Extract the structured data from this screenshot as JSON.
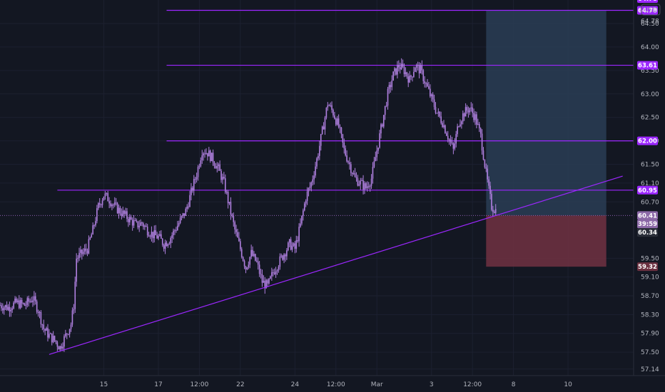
{
  "chart_data": {
    "type": "candlestick",
    "currency_label": "USD",
    "colors": {
      "background": "#131722",
      "candle": "#b080e0",
      "line": "#9c27ff",
      "profit_zone": "#2a3d55",
      "loss_zone": "#6b3040",
      "badge": "#9c27ff"
    },
    "y_axis": {
      "ylim": [
        57.0,
        65.0
      ],
      "ticks": [
        "57.14",
        "57.50",
        "57.90",
        "58.30",
        "58.70",
        "59.10",
        "59.50",
        "60.70",
        "61.10",
        "61.50",
        "62.00",
        "62.50",
        "63.00",
        "63.50",
        "64.00",
        "64.50"
      ]
    },
    "x_axis": {
      "ticks": [
        {
          "label": "15",
          "x": 3
        },
        {
          "label": "17",
          "x": 5
        },
        {
          "label": "12:00",
          "x": 6.5
        },
        {
          "label": "22",
          "x": 8
        },
        {
          "label": "24",
          "x": 10
        },
        {
          "label": "12:00",
          "x": 11.5
        },
        {
          "label": "Mar",
          "x": 13
        },
        {
          "label": "3",
          "x": 15
        },
        {
          "label": "12:00",
          "x": 16.5
        },
        {
          "label": "8",
          "x": 18
        },
        {
          "label": "10",
          "x": 20
        }
      ],
      "xlim": [
        -0.8,
        22.4
      ]
    },
    "price_path": [
      [
        -0.8,
        58.5
      ],
      [
        -0.5,
        58.45
      ],
      [
        -0.2,
        58.55
      ],
      [
        0.1,
        58.5
      ],
      [
        0.4,
        58.65
      ],
      [
        0.6,
        58.4
      ],
      [
        0.8,
        58.0
      ],
      [
        1.0,
        57.85
      ],
      [
        1.2,
        57.75
      ],
      [
        1.4,
        57.6
      ],
      [
        1.6,
        57.85
      ],
      [
        1.8,
        58.1
      ],
      [
        1.9,
        58.5
      ],
      [
        2.0,
        59.5
      ],
      [
        2.2,
        59.6
      ],
      [
        2.4,
        59.7
      ],
      [
        2.6,
        60.1
      ],
      [
        2.8,
        60.6
      ],
      [
        3.0,
        60.85
      ],
      [
        3.2,
        60.75
      ],
      [
        3.4,
        60.6
      ],
      [
        3.6,
        60.5
      ],
      [
        3.8,
        60.4
      ],
      [
        4.0,
        60.3
      ],
      [
        4.2,
        60.2
      ],
      [
        4.4,
        60.25
      ],
      [
        4.6,
        60.1
      ],
      [
        4.8,
        60.0
      ],
      [
        5.0,
        59.95
      ],
      [
        5.2,
        59.8
      ],
      [
        5.4,
        59.9
      ],
      [
        5.6,
        60.1
      ],
      [
        5.8,
        60.3
      ],
      [
        6.0,
        60.5
      ],
      [
        6.2,
        60.9
      ],
      [
        6.4,
        61.3
      ],
      [
        6.6,
        61.8
      ],
      [
        6.8,
        61.75
      ],
      [
        7.0,
        61.6
      ],
      [
        7.2,
        61.4
      ],
      [
        7.4,
        61.1
      ],
      [
        7.6,
        60.6
      ],
      [
        7.8,
        60.1
      ],
      [
        8.0,
        59.7
      ],
      [
        8.2,
        59.3
      ],
      [
        8.4,
        59.6
      ],
      [
        8.6,
        59.4
      ],
      [
        8.8,
        59.0
      ],
      [
        9.0,
        58.9
      ],
      [
        9.2,
        59.2
      ],
      [
        9.4,
        59.4
      ],
      [
        9.6,
        59.6
      ],
      [
        9.8,
        59.8
      ],
      [
        10.0,
        59.7
      ],
      [
        10.2,
        60.2
      ],
      [
        10.4,
        60.8
      ],
      [
        10.6,
        61.1
      ],
      [
        10.8,
        61.6
      ],
      [
        11.0,
        62.2
      ],
      [
        11.2,
        62.8
      ],
      [
        11.4,
        62.6
      ],
      [
        11.6,
        62.3
      ],
      [
        11.8,
        61.8
      ],
      [
        12.0,
        61.5
      ],
      [
        12.2,
        61.2
      ],
      [
        12.4,
        61.1
      ],
      [
        12.6,
        61.0
      ],
      [
        12.8,
        61.2
      ],
      [
        13.0,
        61.8
      ],
      [
        13.2,
        62.4
      ],
      [
        13.4,
        63.0
      ],
      [
        13.6,
        63.4
      ],
      [
        13.8,
        63.6
      ],
      [
        14.0,
        63.5
      ],
      [
        14.2,
        63.3
      ],
      [
        14.4,
        63.6
      ],
      [
        14.6,
        63.5
      ],
      [
        14.8,
        63.2
      ],
      [
        15.0,
        62.9
      ],
      [
        15.2,
        62.6
      ],
      [
        15.4,
        62.4
      ],
      [
        15.6,
        62.1
      ],
      [
        15.8,
        61.8
      ],
      [
        16.0,
        62.4
      ],
      [
        16.2,
        62.6
      ],
      [
        16.4,
        62.7
      ],
      [
        16.6,
        62.5
      ],
      [
        16.8,
        62.1
      ],
      [
        17.0,
        61.3
      ],
      [
        17.2,
        60.6
      ],
      [
        17.4,
        60.5
      ]
    ],
    "horizontal_levels": [
      {
        "price": 64.78,
        "label": "64.78",
        "x_start": 5.3
      },
      {
        "price": 63.61,
        "label": "63.61",
        "x_start": 5.3
      },
      {
        "price": 62.0,
        "label": "62.00",
        "x_start": 5.3
      },
      {
        "price": 60.95,
        "label": "60.95",
        "x_start": 1.3
      }
    ],
    "trendline": {
      "from": [
        1.0,
        57.45
      ],
      "to": [
        22.0,
        61.25
      ]
    },
    "position": {
      "x_start": 17.0,
      "x_end": 21.4,
      "entry": 60.41,
      "target": 64.78,
      "stop": 59.32
    },
    "last_price": {
      "label": "60.41",
      "countdown": "39:59"
    },
    "low_marker": {
      "label": "60.34"
    },
    "extra_axis_labels": [
      {
        "label": "64.78",
        "y": 64.55
      }
    ]
  }
}
